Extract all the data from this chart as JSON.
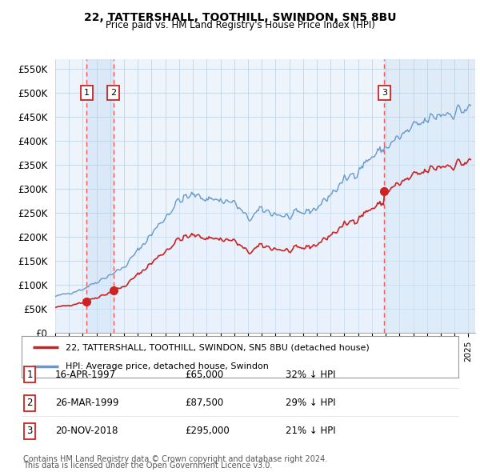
{
  "title": "22, TATTERSHALL, TOOTHILL, SWINDON, SN5 8BU",
  "subtitle": "Price paid vs. HM Land Registry's House Price Index (HPI)",
  "ylim": [
    0,
    570000
  ],
  "yticks": [
    0,
    50000,
    100000,
    150000,
    200000,
    250000,
    300000,
    350000,
    400000,
    450000,
    500000,
    550000
  ],
  "ytick_labels": [
    "£0",
    "£50K",
    "£100K",
    "£150K",
    "£200K",
    "£250K",
    "£300K",
    "£350K",
    "£400K",
    "£450K",
    "£500K",
    "£550K"
  ],
  "xlim_start": 1995.0,
  "xlim_end": 2025.5,
  "sales": [
    {
      "num": 1,
      "date": "16-APR-1997",
      "year": 1997.29,
      "price": 65000,
      "pct": "32%",
      "dir": "↓"
    },
    {
      "num": 2,
      "date": "26-MAR-1999",
      "year": 1999.23,
      "price": 87500,
      "pct": "29%",
      "dir": "↓"
    },
    {
      "num": 3,
      "date": "20-NOV-2018",
      "year": 2018.89,
      "price": 295000,
      "pct": "21%",
      "dir": "↓"
    }
  ],
  "legend_property_label": "22, TATTERSHALL, TOOTHILL, SWINDON, SN5 8BU (detached house)",
  "legend_hpi_label": "HPI: Average price, detached house, Swindon",
  "footer_line1": "Contains HM Land Registry data © Crown copyright and database right 2024.",
  "footer_line2": "This data is licensed under the Open Government Licence v3.0.",
  "property_line_color": "#cc2222",
  "hpi_line_color": "#6699cc",
  "hpi_fill_color": "#ddeeff",
  "bg_color": "#eef4fb",
  "sale_marker_color": "#cc2222",
  "sale_vline_color": "#ff5555",
  "sale_shade_color": "#d4e4f7",
  "label_box_color": "#cc2222",
  "grid_color": "#b8cfe0"
}
